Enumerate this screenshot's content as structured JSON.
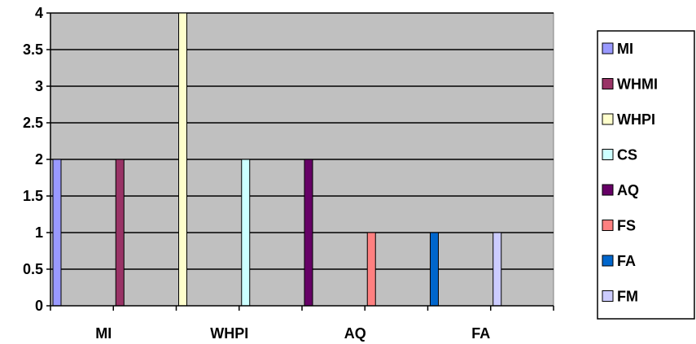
{
  "chart_data": {
    "type": "bar",
    "categories": [
      "MI",
      "WHMI",
      "WHPI",
      "CS",
      "AQ",
      "FS",
      "FA",
      "FM"
    ],
    "x_tick_labels": [
      "MI",
      "WHPI",
      "AQ",
      "FA"
    ],
    "series": [
      {
        "name": "MI",
        "values": [
          2,
          0,
          0,
          0,
          0,
          0,
          0,
          0
        ],
        "color": "#9999FF"
      },
      {
        "name": "WHMI",
        "values": [
          0,
          2,
          0,
          0,
          0,
          0,
          0,
          0
        ],
        "color": "#993366"
      },
      {
        "name": "WHPI",
        "values": [
          0,
          0,
          4,
          0,
          0,
          0,
          0,
          0
        ],
        "color": "#FFFFCC"
      },
      {
        "name": "CS",
        "values": [
          0,
          0,
          0,
          2,
          0,
          0,
          0,
          0
        ],
        "color": "#CCFFFF"
      },
      {
        "name": "AQ",
        "values": [
          0,
          0,
          0,
          0,
          2,
          0,
          0,
          0
        ],
        "color": "#660066"
      },
      {
        "name": "FS",
        "values": [
          0,
          0,
          0,
          0,
          0,
          1,
          0,
          0
        ],
        "color": "#FF8080"
      },
      {
        "name": "FA",
        "values": [
          0,
          0,
          0,
          0,
          0,
          0,
          1,
          0
        ],
        "color": "#0066CC"
      },
      {
        "name": "FM",
        "values": [
          0,
          0,
          0,
          0,
          0,
          0,
          0,
          1
        ],
        "color": "#CCCCFF"
      }
    ],
    "y_ticks": [
      "0",
      "0.5",
      "1",
      "1.5",
      "2",
      "2.5",
      "3",
      "3.5",
      "4"
    ],
    "ylim": [
      0,
      4
    ],
    "grid": true,
    "legend_position": "right",
    "plot_background": "#C0C0C0",
    "title": "",
    "xlabel": "",
    "ylabel": ""
  }
}
